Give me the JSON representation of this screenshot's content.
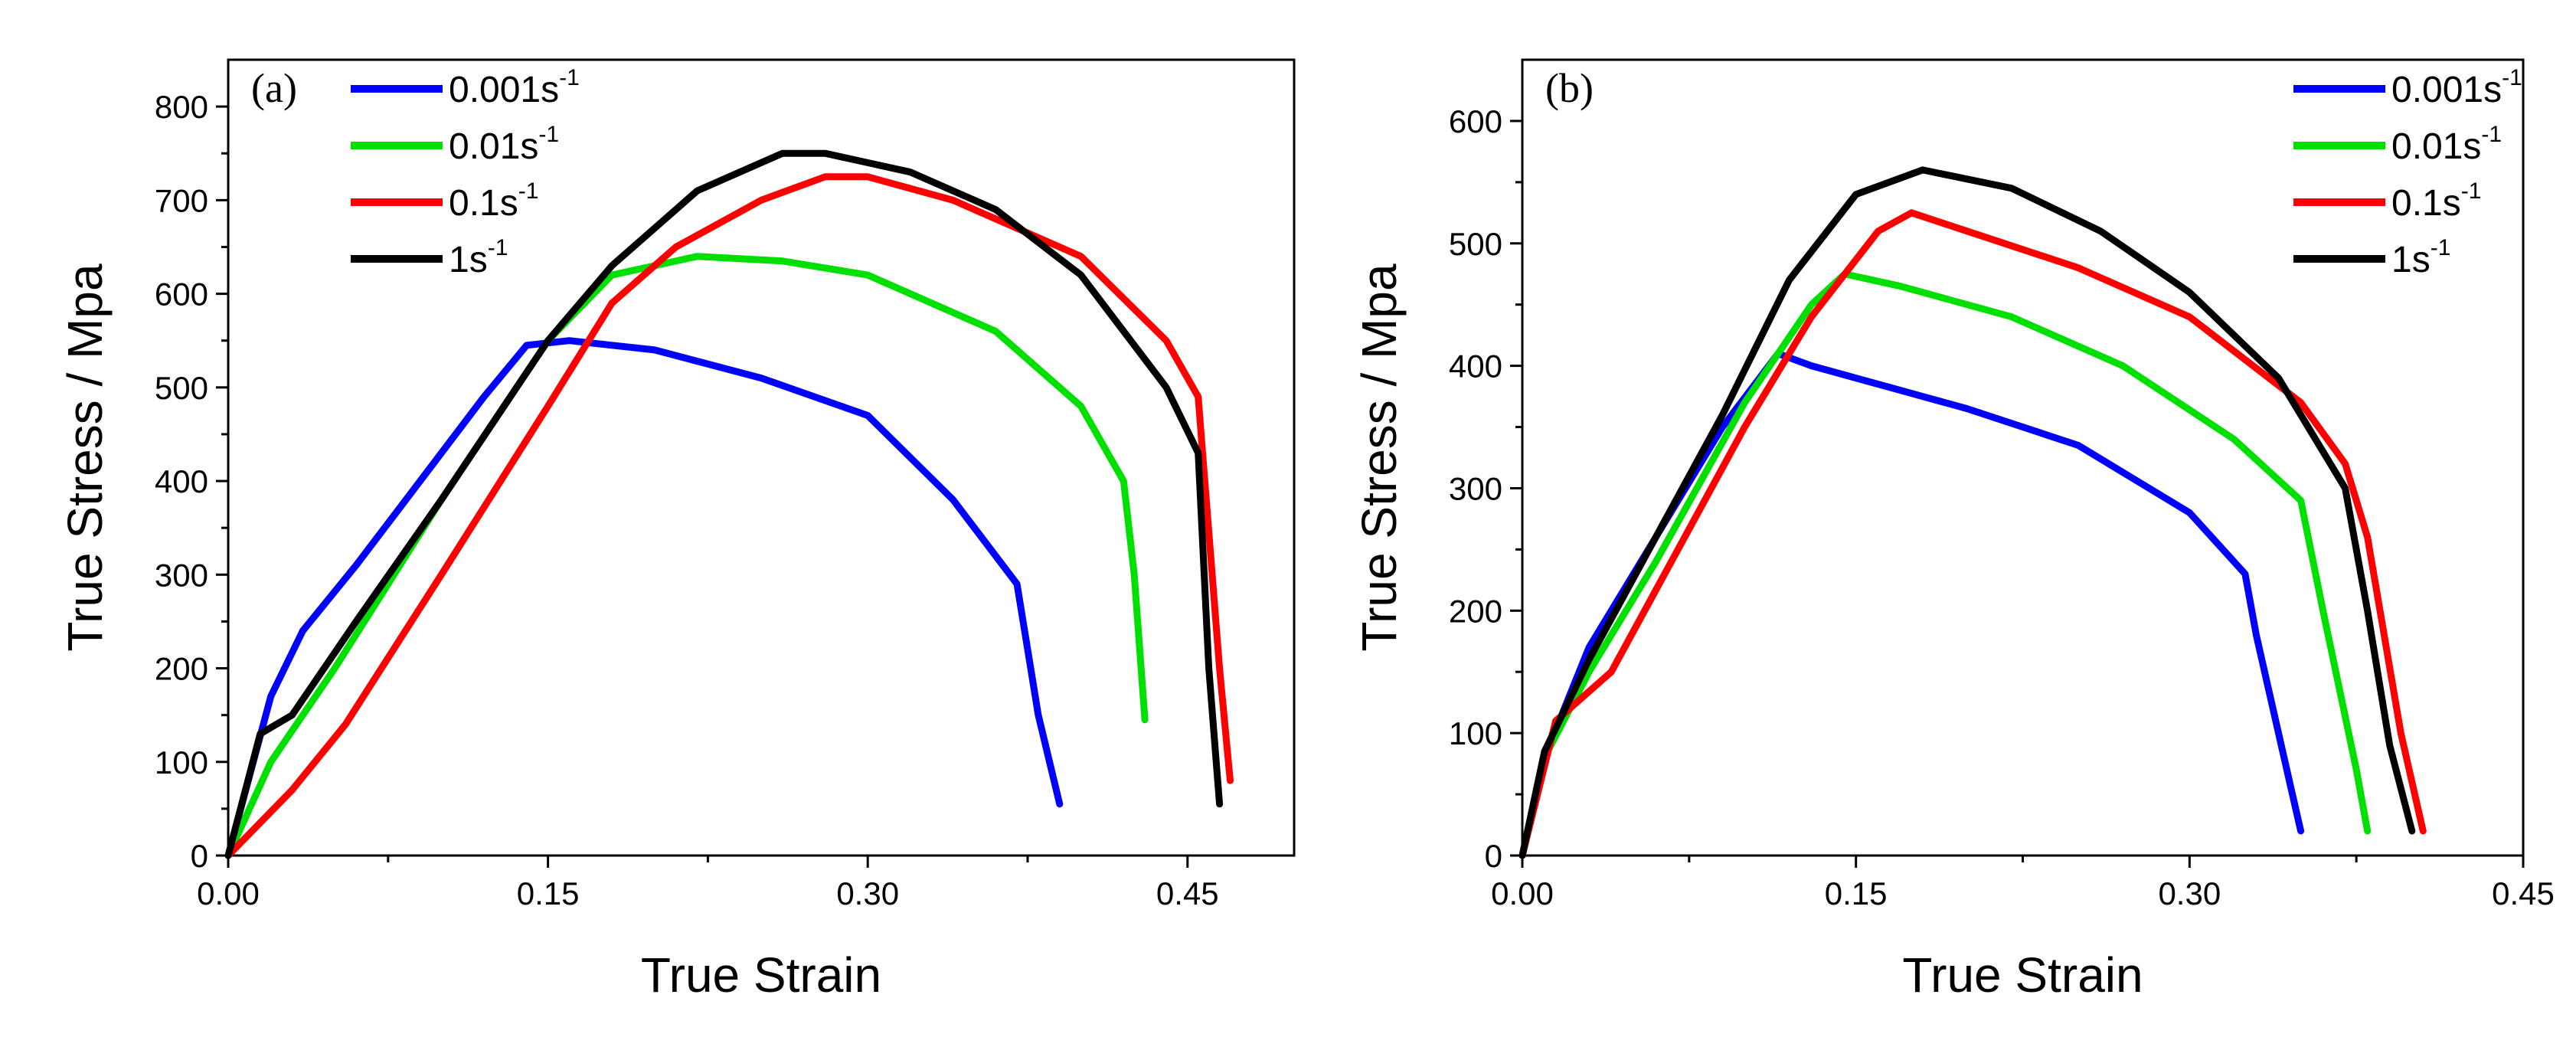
{
  "chart_data": [
    {
      "type": "line",
      "panel_label": "(a)",
      "xlabel": "True Strain",
      "ylabel": "True Stress / Mpa",
      "xlim": [
        0,
        0.5
      ],
      "ylim": [
        0,
        850
      ],
      "xticks": [
        "0.00",
        "0.15",
        "0.30",
        "0.45"
      ],
      "xtick_values": [
        0,
        0.15,
        0.3,
        0.45
      ],
      "yticks": [
        "0",
        "100",
        "200",
        "300",
        "400",
        "500",
        "600",
        "700",
        "800"
      ],
      "ytick_values": [
        0,
        100,
        200,
        300,
        400,
        500,
        600,
        700,
        800
      ],
      "grid": false,
      "legend": "top-left",
      "series": [
        {
          "name": "0.001s",
          "name_sup": "-1",
          "color": "#0000ff",
          "x": [
            0,
            0.02,
            0.035,
            0.06,
            0.09,
            0.12,
            0.14,
            0.16,
            0.2,
            0.25,
            0.3,
            0.34,
            0.37,
            0.38,
            0.39
          ],
          "y": [
            0,
            170,
            240,
            310,
            400,
            490,
            545,
            550,
            540,
            510,
            470,
            380,
            290,
            150,
            55
          ]
        },
        {
          "name": "0.01s",
          "name_sup": "-1",
          "color": "#00e000",
          "x": [
            0,
            0.02,
            0.05,
            0.1,
            0.15,
            0.18,
            0.22,
            0.26,
            0.3,
            0.36,
            0.4,
            0.42,
            0.425,
            0.43
          ],
          "y": [
            0,
            100,
            200,
            380,
            550,
            620,
            640,
            635,
            620,
            560,
            480,
            400,
            300,
            145
          ]
        },
        {
          "name": "0.1s",
          "name_sup": "-1",
          "color": "#ff0000",
          "x": [
            0,
            0.03,
            0.055,
            0.1,
            0.15,
            0.18,
            0.21,
            0.25,
            0.28,
            0.3,
            0.34,
            0.4,
            0.44,
            0.455,
            0.465,
            0.47
          ],
          "y": [
            0,
            70,
            140,
            300,
            480,
            590,
            650,
            700,
            725,
            725,
            700,
            640,
            550,
            490,
            200,
            80
          ]
        },
        {
          "name": "1s",
          "name_sup": "-1",
          "color": "#000000",
          "x": [
            0,
            0.015,
            0.03,
            0.06,
            0.1,
            0.15,
            0.18,
            0.22,
            0.26,
            0.28,
            0.32,
            0.36,
            0.4,
            0.44,
            0.455,
            0.46,
            0.465
          ],
          "y": [
            0,
            130,
            150,
            250,
            380,
            550,
            630,
            710,
            750,
            750,
            730,
            690,
            620,
            500,
            430,
            200,
            55
          ]
        }
      ]
    },
    {
      "type": "line",
      "panel_label": "(b)",
      "xlabel": "True Strain",
      "ylabel": "True Stress / Mpa",
      "xlim": [
        0,
        0.45
      ],
      "ylim": [
        0,
        650
      ],
      "xticks": [
        "0.00",
        "0.15",
        "0.30",
        "0.45"
      ],
      "xtick_values": [
        0,
        0.15,
        0.3,
        0.45
      ],
      "yticks": [
        "0",
        "100",
        "200",
        "300",
        "400",
        "500",
        "600"
      ],
      "ytick_values": [
        0,
        100,
        200,
        300,
        400,
        500,
        600
      ],
      "grid": false,
      "legend": "top-right",
      "series": [
        {
          "name": "0.001s",
          "name_sup": "-1",
          "color": "#0000ff",
          "x": [
            0,
            0.01,
            0.03,
            0.06,
            0.09,
            0.115,
            0.13,
            0.16,
            0.2,
            0.25,
            0.3,
            0.325,
            0.33,
            0.345,
            0.35
          ],
          "y": [
            0,
            80,
            170,
            260,
            350,
            410,
            400,
            385,
            365,
            335,
            280,
            230,
            180,
            60,
            20
          ]
        },
        {
          "name": "0.01s",
          "name_sup": "-1",
          "color": "#00e000",
          "x": [
            0,
            0.01,
            0.03,
            0.06,
            0.1,
            0.13,
            0.145,
            0.17,
            0.22,
            0.27,
            0.32,
            0.35,
            0.36,
            0.375,
            0.38
          ],
          "y": [
            0,
            80,
            150,
            240,
            370,
            450,
            475,
            465,
            440,
            400,
            340,
            290,
            200,
            70,
            20
          ]
        },
        {
          "name": "0.1s",
          "name_sup": "-1",
          "color": "#ff0000",
          "x": [
            0,
            0.015,
            0.04,
            0.07,
            0.1,
            0.13,
            0.16,
            0.175,
            0.2,
            0.25,
            0.3,
            0.35,
            0.37,
            0.38,
            0.395,
            0.405
          ],
          "y": [
            0,
            110,
            150,
            250,
            350,
            440,
            510,
            525,
            510,
            480,
            440,
            370,
            320,
            260,
            100,
            20
          ]
        },
        {
          "name": "1s",
          "name_sup": "-1",
          "color": "#000000",
          "x": [
            0,
            0.01,
            0.03,
            0.06,
            0.09,
            0.12,
            0.15,
            0.18,
            0.22,
            0.26,
            0.3,
            0.34,
            0.37,
            0.38,
            0.39,
            0.4
          ],
          "y": [
            0,
            85,
            160,
            260,
            360,
            470,
            540,
            560,
            545,
            510,
            460,
            390,
            300,
            200,
            90,
            20
          ]
        }
      ]
    }
  ]
}
